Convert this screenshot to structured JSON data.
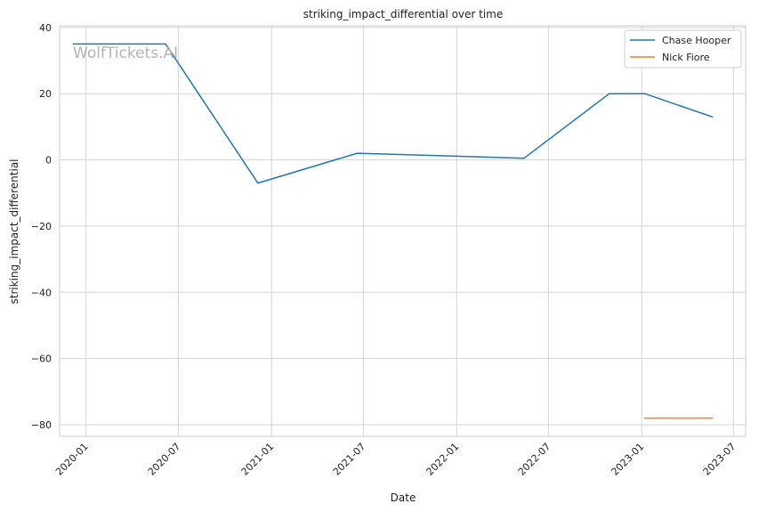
{
  "chart_data": {
    "type": "line",
    "title": "striking_impact_differential over time",
    "xlabel": "Date",
    "ylabel": "striking_impact_differential",
    "watermark": "WolfTickets.AI",
    "x_ticks": [
      "2020-01",
      "2020-07",
      "2021-01",
      "2021-07",
      "2022-01",
      "2022-07",
      "2023-01",
      "2023-07"
    ],
    "y_ticks": [
      40,
      20,
      0,
      -20,
      -40,
      -60,
      -80
    ],
    "y_tick_labels": [
      "40",
      "20",
      "0",
      "−20",
      "−40",
      "−60",
      "−80"
    ],
    "xlim": [
      "2019-11-10",
      "2023-07-25"
    ],
    "ylim": [
      -83.5,
      40.5
    ],
    "grid": true,
    "legend_position": "top-right",
    "series": [
      {
        "name": "Chase Hooper",
        "color": "#1f77b4",
        "x": [
          "2019-12-07",
          "2020-06-06",
          "2020-12-05",
          "2021-06-19",
          "2022-05-14",
          "2022-10-29",
          "2023-01-07",
          "2023-05-20"
        ],
        "y": [
          35,
          35,
          -7,
          2,
          0.5,
          20,
          20,
          13
        ]
      },
      {
        "name": "Nick Fiore",
        "color": "#ff7f0e",
        "x": [
          "2023-01-07",
          "2023-05-20"
        ],
        "y": [
          -78,
          -78
        ]
      }
    ]
  }
}
